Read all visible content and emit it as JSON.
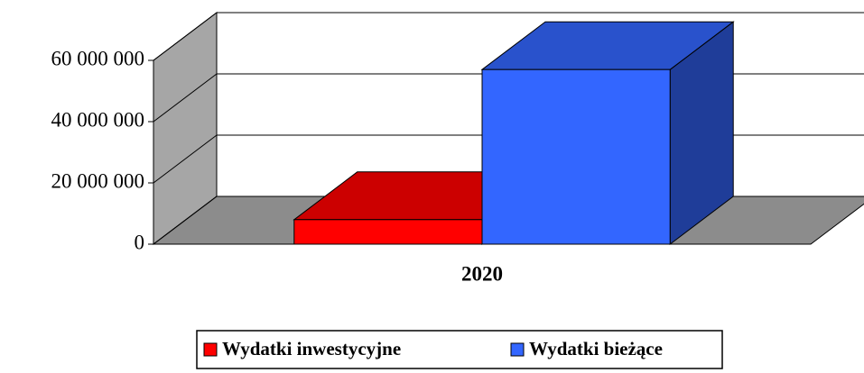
{
  "chart_data": {
    "type": "bar",
    "categories": [
      "2020"
    ],
    "series": [
      {
        "name": "Wydatki inwestycyjne",
        "color": "#ff0000",
        "values": [
          8000000
        ]
      },
      {
        "name": "Wydatki bieżące",
        "color": "#3366ff",
        "values": [
          57000000
        ]
      }
    ],
    "ylim": [
      0,
      60000000
    ],
    "yticks": [
      0,
      {
        "value": 20000000,
        "label": "20 000 000"
      },
      {
        "value": 40000000,
        "label": "40 000 000"
      },
      {
        "value": 60000000,
        "label": "60 000 000"
      }
    ],
    "grid": true,
    "legend": "bottom"
  }
}
